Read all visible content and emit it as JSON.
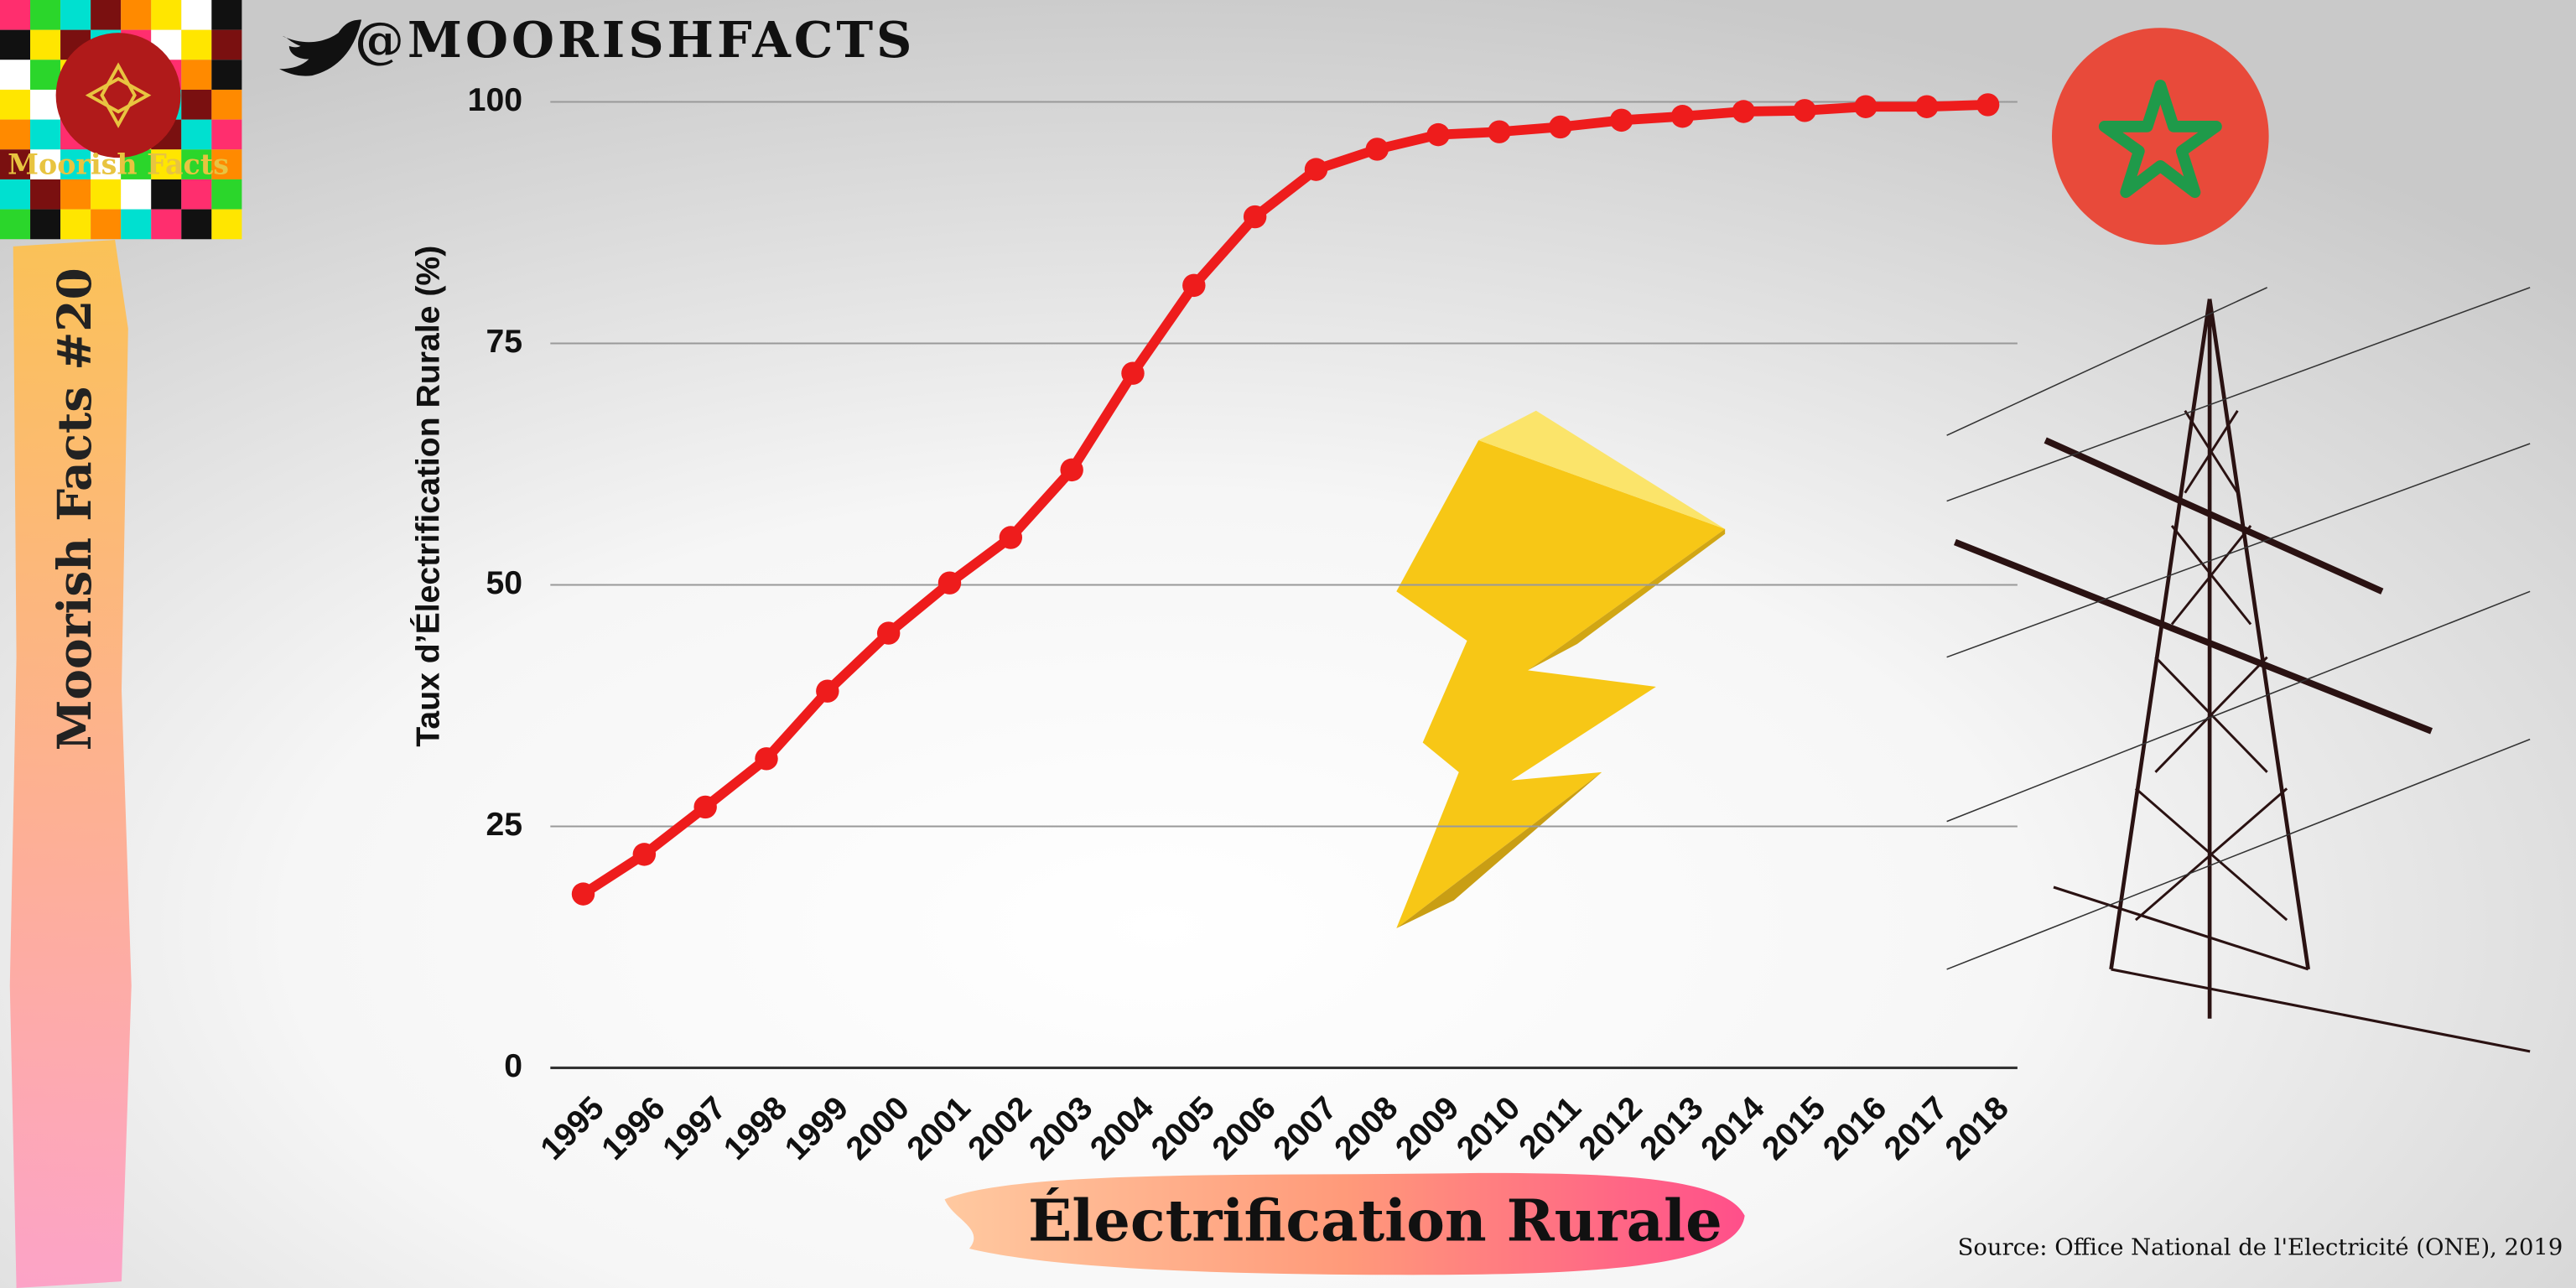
{
  "chart_data": {
    "type": "line",
    "title": "Électrification Rurale",
    "y_label": "Taux d’Électrification Rurale (%)",
    "source": "Source:  Office National de l'Electricité (ONE), 2019",
    "handle": "@MOORISHFACTS",
    "badge": "Moorish Facts #20",
    "logo_text": "Moorish Facts",
    "categories": [
      "1995",
      "1996",
      "1997",
      "1998",
      "1999",
      "2000",
      "2001",
      "2002",
      "2003",
      "2004",
      "2005",
      "2006",
      "2007",
      "2008",
      "2009",
      "2010",
      "2011",
      "2012",
      "2013",
      "2014",
      "2015",
      "2016",
      "2017",
      "2018"
    ],
    "values": [
      18,
      22.1,
      27,
      32,
      39,
      45,
      50.2,
      54.9,
      61.9,
      71.9,
      81,
      88.1,
      93,
      95.1,
      96.6,
      96.9,
      97.4,
      98.1,
      98.5,
      99,
      99.1,
      99.5,
      99.5,
      99.7
    ],
    "color": "#ee1c1c",
    "ylim": [
      0,
      100
    ],
    "yticks": [
      0,
      25,
      50,
      75,
      100
    ],
    "grid": true
  }
}
